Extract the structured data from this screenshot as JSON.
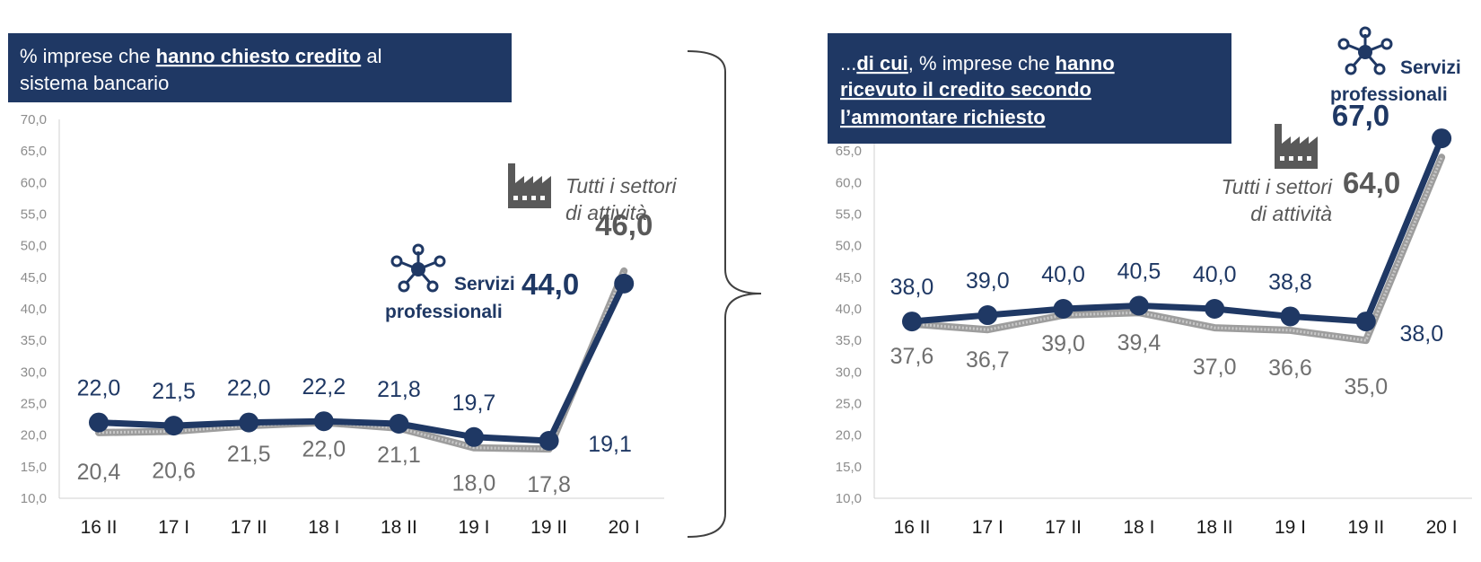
{
  "chart_data": [
    {
      "type": "line",
      "title": "% imprese che hanno chiesto credito al sistema bancario",
      "title_parts": [
        {
          "text": "% imprese che ",
          "bold": false
        },
        {
          "text": "hanno chiesto credito",
          "bold": true
        },
        {
          "text": " al",
          "bold": false
        }
      ],
      "title_line2": "sistema bancario",
      "categories": [
        "16 II",
        "17 I",
        "17 II",
        "18 I",
        "18 II",
        "19 I",
        "19 II",
        "20 I"
      ],
      "ylim": [
        10,
        70
      ],
      "yticks": [
        "10,0",
        "15,0",
        "20,0",
        "25,0",
        "30,0",
        "35,0",
        "40,0",
        "45,0",
        "50,0",
        "55,0",
        "60,0",
        "65,0",
        "70,0"
      ],
      "series": [
        {
          "name": "Servizi professionali",
          "color": "#1f3864",
          "values": [
            22.0,
            21.5,
            22.0,
            22.2,
            21.8,
            19.7,
            19.1,
            44.0
          ],
          "labels": [
            "22,0",
            "21,5",
            "22,0",
            "22,2",
            "21,8",
            "19,7",
            "19,1",
            "44,0"
          ]
        },
        {
          "name": "Tutti i settori di attività",
          "color": "#8c8c8c",
          "values": [
            20.4,
            20.6,
            21.5,
            22.0,
            21.1,
            18.0,
            17.8,
            46.0
          ],
          "labels": [
            "20,4",
            "20,6",
            "21,5",
            "22,0",
            "21,1",
            "18,0",
            "17,8",
            "46,0"
          ]
        }
      ],
      "annotation_all_line1": "Tutti i settori",
      "annotation_all_line2": "di attività",
      "annotation_prof_line1": "Servizi",
      "annotation_prof_line2": "professionali"
    },
    {
      "type": "line",
      "title": "...di cui, % imprese che hanno ricevuto il credito secondo l'ammontare richiesto",
      "title_line1_parts": [
        {
          "text": "...",
          "bold": false
        },
        {
          "text": "di cui",
          "bold": true
        },
        {
          "text": ", % imprese che ",
          "bold": false
        },
        {
          "text": "hanno",
          "bold": true
        }
      ],
      "title_line2": "ricevuto il credito secondo",
      "title_line3": "l’ammontare richiesto",
      "categories": [
        "16 II",
        "17 I",
        "17 II",
        "18 I",
        "18 II",
        "19 I",
        "19 II",
        "20 I"
      ],
      "ylim": [
        10,
        70
      ],
      "yticks": [
        "10,0",
        "15,0",
        "20,0",
        "25,0",
        "30,0",
        "35,0",
        "40,0",
        "45,0",
        "50,0",
        "55,0",
        "60,0",
        "65,0"
      ],
      "series": [
        {
          "name": "Servizi professionali",
          "color": "#1f3864",
          "values": [
            38.0,
            39.0,
            40.0,
            40.5,
            40.0,
            38.8,
            38.0,
            67.0
          ],
          "labels": [
            "38,0",
            "39,0",
            "40,0",
            "40,5",
            "40,0",
            "38,8",
            "38,0",
            "67,0"
          ]
        },
        {
          "name": "Tutti i settori di attività",
          "color": "#8c8c8c",
          "values": [
            37.6,
            36.7,
            39.0,
            39.4,
            37.0,
            36.6,
            35.0,
            64.0
          ],
          "labels": [
            "37,6",
            "36,7",
            "39,0",
            "39,4",
            "37,0",
            "36,6",
            "35,0",
            "64,0"
          ]
        }
      ],
      "annotation_all_line1": "Tutti i settori",
      "annotation_all_line2": "di attività",
      "annotation_prof_line1": "Servizi",
      "annotation_prof_line2": "professionali"
    }
  ]
}
